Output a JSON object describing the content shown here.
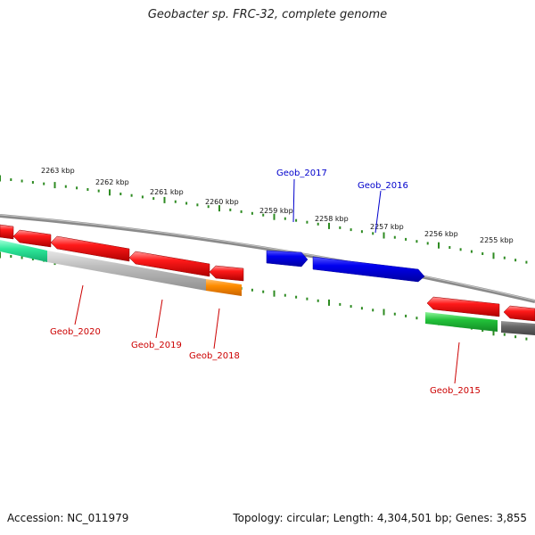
{
  "title": "Geobacter sp. FRC-32, complete genome",
  "footer": {
    "accession": "Accession: NC_011979",
    "summary": "Topology: circular; Length: 4,304,501 bp; Genes: 3,855"
  },
  "colors": {
    "backbone": "#808080",
    "tick": "#2e8b22",
    "forward_strand": "#0000ee",
    "reverse_strand": "#ee0000",
    "cog_green": "#22c23a",
    "cog_teal": "#2ee89a",
    "cog_gray": "#b8b8b8",
    "cog_dark": "#666666",
    "cog_orange": "#ff8c00",
    "label_forward": "#0000cc",
    "label_reverse": "#cc0000"
  },
  "ticks": [
    {
      "label": "2263 kbp"
    },
    {
      "label": "2262 kbp"
    },
    {
      "label": "2261 kbp"
    },
    {
      "label": "2260 kbp"
    },
    {
      "label": "2259 kbp"
    },
    {
      "label": "2258 kbp"
    },
    {
      "label": "2257 kbp"
    },
    {
      "label": "2256 kbp"
    },
    {
      "label": "2255 kbp"
    }
  ],
  "genes": [
    {
      "name": "Geob_2017",
      "strand": "forward"
    },
    {
      "name": "Geob_2016",
      "strand": "forward"
    },
    {
      "name": "Geob_2020",
      "strand": "reverse"
    },
    {
      "name": "Geob_2019",
      "strand": "reverse"
    },
    {
      "name": "Geob_2018",
      "strand": "reverse"
    },
    {
      "name": "Geob_2015",
      "strand": "reverse"
    }
  ]
}
